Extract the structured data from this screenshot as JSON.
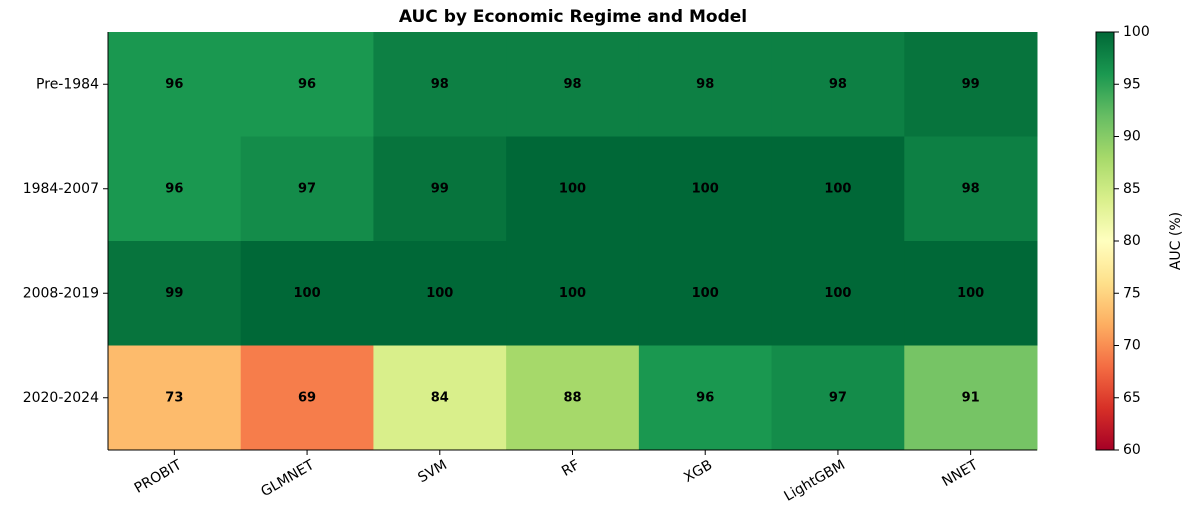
{
  "chart_data": {
    "type": "heatmap",
    "title": "AUC by Economic Regime and Model",
    "x_categories": [
      "PROBIT",
      "GLMNET",
      "SVM",
      "RF",
      "XGB",
      "LightGBM",
      "NNET"
    ],
    "y_categories": [
      "Pre-1984",
      "1984-2007",
      "2008-2019",
      "2020-2024"
    ],
    "values": [
      [
        96,
        96,
        98,
        98,
        98,
        98,
        99
      ],
      [
        96,
        97,
        99,
        100,
        100,
        100,
        98
      ],
      [
        99,
        100,
        100,
        100,
        100,
        100,
        100
      ],
      [
        73,
        69,
        84,
        88,
        96,
        97,
        91
      ]
    ],
    "colormap": "RdYlGn",
    "colorbar": {
      "label": "AUC (%)",
      "lim": [
        60,
        100
      ],
      "ticks": [
        60,
        65,
        70,
        75,
        80,
        85,
        90,
        95,
        100
      ]
    }
  }
}
